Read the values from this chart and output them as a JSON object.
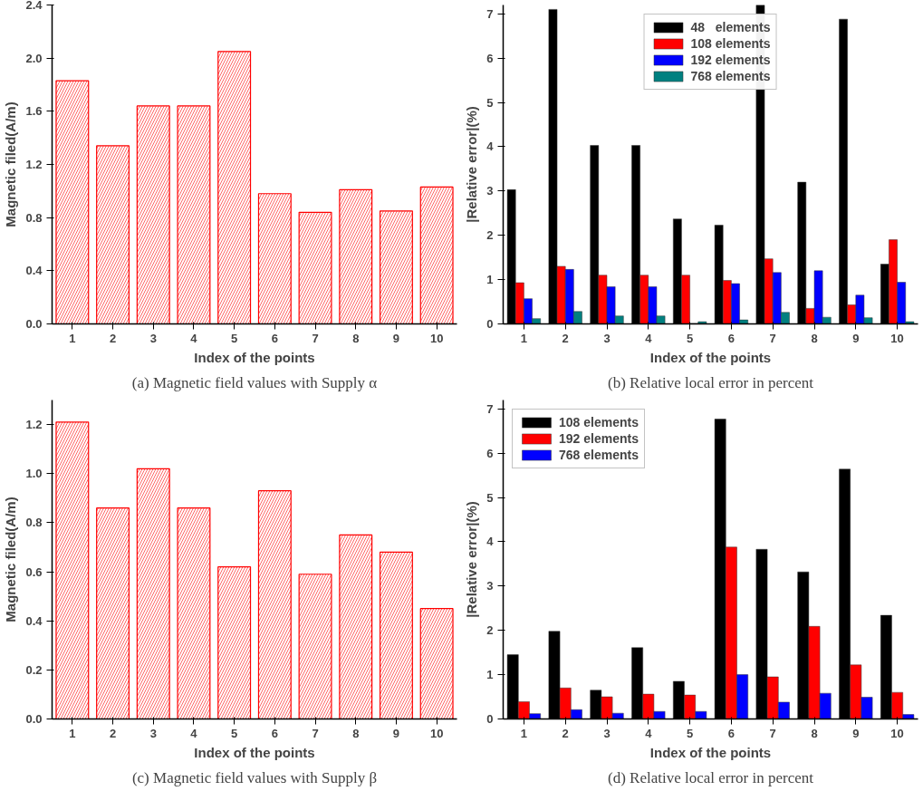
{
  "chart_data": [
    {
      "type": "bar",
      "xlabel": "Index of the points",
      "ylabel": "Magnetic filed(A/m)",
      "annotations": [
        "(a) Magnetic field values with Supply α"
      ],
      "categories": [
        "1",
        "2",
        "3",
        "4",
        "5",
        "6",
        "7",
        "8",
        "9",
        "10"
      ],
      "series": [
        {
          "color": "#ff0000",
          "values": [
            1.83,
            1.34,
            1.64,
            1.64,
            2.05,
            0.98,
            0.84,
            1.01,
            0.85,
            1.03
          ]
        }
      ],
      "ylim": [
        0,
        2.4
      ],
      "yticks": [
        {
          "value": 0,
          "label": "0.0"
        },
        {
          "value": 0.4,
          "label": "0.4"
        },
        {
          "value": 0.8,
          "label": "0.8"
        },
        {
          "value": 1.2,
          "label": "1.2"
        },
        {
          "value": 1.6,
          "label": "1.6"
        },
        {
          "value": 2.0,
          "label": "2.0"
        },
        {
          "value": 2.4,
          "label": "2.4"
        }
      ],
      "grid": false,
      "legend": false
    },
    {
      "type": "bar",
      "xlabel": "Index of the points",
      "ylabel": "|Relative error|(%)",
      "annotations": [
        "(b) Relative local error in percent"
      ],
      "categories": [
        "1",
        "2",
        "3",
        "4",
        "5",
        "6",
        "7",
        "8",
        "9",
        "10"
      ],
      "series": [
        {
          "name": "48   elements",
          "color": "#000000",
          "values": [
            3.03,
            7.1,
            4.03,
            4.03,
            2.37,
            2.23,
            7.2,
            3.2,
            6.88,
            1.35
          ]
        },
        {
          "name": "108 elements",
          "color": "#ff0000",
          "values": [
            0.93,
            1.3,
            1.1,
            1.1,
            1.1,
            0.98,
            1.47,
            0.35,
            0.43,
            1.9
          ]
        },
        {
          "name": "192 elements",
          "color": "#0000ff",
          "values": [
            0.57,
            1.23,
            0.84,
            0.84,
            0.01,
            0.91,
            1.16,
            1.2,
            0.65,
            0.94
          ]
        },
        {
          "name": "768 elements",
          "color": "#008080",
          "values": [
            0.12,
            0.28,
            0.18,
            0.18,
            0.05,
            0.09,
            0.26,
            0.15,
            0.14,
            0.05
          ]
        }
      ],
      "ylim": [
        0,
        7.2
      ],
      "yticks": [
        0,
        1,
        2,
        3,
        4,
        5,
        6,
        7
      ],
      "grid": false,
      "legend": "top"
    },
    {
      "type": "bar",
      "xlabel": "Index of the points",
      "ylabel": "Magnetic filed(A/m)",
      "annotations": [
        "(c) Magnetic field values with Supply β"
      ],
      "categories": [
        "1",
        "2",
        "3",
        "4",
        "5",
        "6",
        "7",
        "8",
        "9",
        "10"
      ],
      "series": [
        {
          "color": "#ff0000",
          "values": [
            1.21,
            0.86,
            1.02,
            0.86,
            0.62,
            0.93,
            0.59,
            0.75,
            0.68,
            0.45
          ]
        }
      ],
      "ylim": [
        0,
        1.3
      ],
      "yticks": [
        {
          "value": 0,
          "label": "0.0"
        },
        {
          "value": 0.2,
          "label": "0.2"
        },
        {
          "value": 0.4,
          "label": "0.4"
        },
        {
          "value": 0.6,
          "label": "0.6"
        },
        {
          "value": 0.8,
          "label": "0.8"
        },
        {
          "value": 1.0,
          "label": "1.0"
        },
        {
          "value": 1.2,
          "label": "1.2"
        }
      ],
      "grid": false,
      "legend": false
    },
    {
      "type": "bar",
      "xlabel": "Index of the points",
      "ylabel": "|Relative error|(%)",
      "annotations": [
        "(d) Relative local error in percent"
      ],
      "categories": [
        "1",
        "2",
        "3",
        "4",
        "5",
        "6",
        "7",
        "8",
        "9",
        "10"
      ],
      "series": [
        {
          "name": "108 elements",
          "color": "#000000",
          "values": [
            1.45,
            1.98,
            0.65,
            1.61,
            0.85,
            6.77,
            3.83,
            3.32,
            5.64,
            2.34
          ]
        },
        {
          "name": "192 elements",
          "color": "#ff0000",
          "values": [
            0.39,
            0.7,
            0.5,
            0.56,
            0.54,
            3.88,
            0.95,
            2.09,
            1.22,
            0.6
          ]
        },
        {
          "name": "768 elements",
          "color": "#0000ff",
          "values": [
            0.12,
            0.21,
            0.13,
            0.17,
            0.17,
            1.0,
            0.38,
            0.58,
            0.49,
            0.1
          ]
        }
      ],
      "ylim": [
        0,
        7.2
      ],
      "yticks": [
        0,
        1,
        2,
        3,
        4,
        5,
        6,
        7
      ],
      "grid": false,
      "legend": "top left"
    }
  ]
}
